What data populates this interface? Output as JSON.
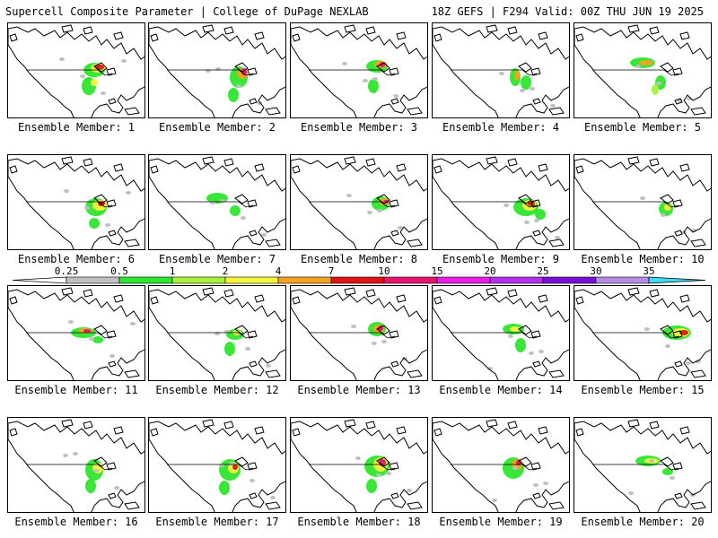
{
  "header": {
    "title_left": "Supercell Composite Parameter | College of DuPage NEXLAB",
    "title_right": "18Z GEFS | F294 Valid: 00Z THU JUN 19 2025"
  },
  "colorbar": {
    "labels": [
      "0.25",
      "0.5",
      "1",
      "2",
      "4",
      "7",
      "10",
      "15",
      "20",
      "25",
      "30",
      "35"
    ],
    "colors": [
      "#ffffff",
      "#c0c0c0",
      "#2ee62e",
      "#a8f03c",
      "#f5f53c",
      "#f5a21e",
      "#e01414",
      "#e6146e",
      "#e61ee6",
      "#b42df0",
      "#7a10d8",
      "#b48ce6",
      "#3cdcf0"
    ]
  },
  "members": [
    {
      "label": "Ensemble Member: 1"
    },
    {
      "label": "Ensemble Member: 2"
    },
    {
      "label": "Ensemble Member: 3"
    },
    {
      "label": "Ensemble Member: 4"
    },
    {
      "label": "Ensemble Member: 5"
    },
    {
      "label": "Ensemble Member: 6"
    },
    {
      "label": "Ensemble Member: 7"
    },
    {
      "label": "Ensemble Member: 8"
    },
    {
      "label": "Ensemble Member: 9"
    },
    {
      "label": "Ensemble Member: 10"
    },
    {
      "label": "Ensemble Member: 11"
    },
    {
      "label": "Ensemble Member: 12"
    },
    {
      "label": "Ensemble Member: 13"
    },
    {
      "label": "Ensemble Member: 14"
    },
    {
      "label": "Ensemble Member: 15"
    },
    {
      "label": "Ensemble Member: 16"
    },
    {
      "label": "Ensemble Member: 17"
    },
    {
      "label": "Ensemble Member: 18"
    },
    {
      "label": "Ensemble Member: 19"
    },
    {
      "label": "Ensemble Member: 20"
    }
  ]
}
